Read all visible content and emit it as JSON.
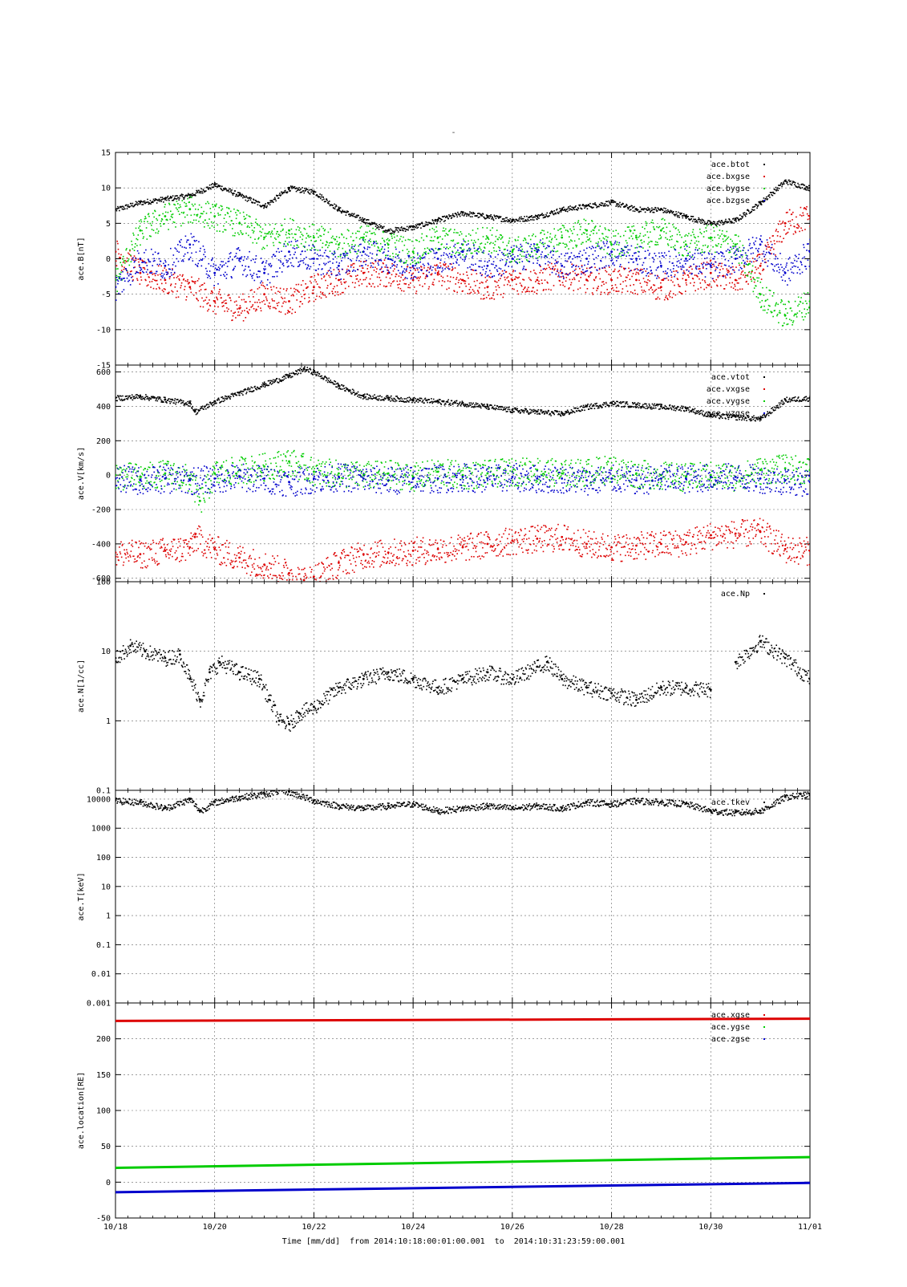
{
  "figure": {
    "title": "-",
    "x_axis_title": "Time [mm/dd]  from 2014:10:18:00:01:00.001  to  2014:10:31:23:59:00.001"
  },
  "chart_data": [
    {
      "type": "scatter",
      "ylabel": "ace.B[nT]",
      "yscale": "linear",
      "ylim": [
        -15,
        15
      ],
      "yticks": [
        -15,
        -10,
        -5,
        0,
        5,
        10,
        15
      ],
      "xlim": [
        0,
        14
      ],
      "xticks": [
        "10/18",
        "10/20",
        "10/22",
        "10/24",
        "10/26",
        "10/28",
        "10/30",
        "11/01"
      ],
      "grid": true,
      "legend": "top-right",
      "series": [
        {
          "name": "ace.btot",
          "color": "#000000",
          "x": [
            0,
            0.5,
            1,
            1.5,
            2,
            2.5,
            3,
            3.5,
            4,
            4.5,
            5,
            5.5,
            6,
            6.5,
            7,
            7.5,
            8,
            8.5,
            9,
            9.5,
            10,
            10.5,
            11,
            11.5,
            12,
            12.5,
            13,
            13.5,
            14
          ],
          "y": [
            7,
            8,
            8.5,
            9,
            10.5,
            9,
            7.5,
            10,
            9.5,
            7,
            5.5,
            4,
            4.5,
            5.5,
            6.5,
            6,
            5.5,
            6,
            7,
            7.5,
            8,
            7,
            7,
            6,
            5,
            5.5,
            8,
            11,
            10
          ]
        },
        {
          "name": "ace.bxgse",
          "color": "#dd0000",
          "x": [
            0,
            0.5,
            1,
            1.5,
            2,
            2.5,
            3,
            3.5,
            4,
            4.5,
            5,
            5.5,
            6,
            6.5,
            7,
            7.5,
            8,
            8.5,
            9,
            9.5,
            10,
            10.5,
            11,
            11.5,
            12,
            12.5,
            13,
            13.5,
            14
          ],
          "y": [
            1,
            -2,
            -3,
            -4,
            -6,
            -7,
            -5,
            -6,
            -4,
            -3,
            -2,
            -2,
            -3,
            -2,
            -3,
            -4,
            -3,
            -3,
            -2,
            -3,
            -3,
            -3,
            -4,
            -3,
            -2,
            -3,
            -1,
            5,
            6
          ]
        },
        {
          "name": "ace.bygse",
          "color": "#00cc00",
          "x": [
            0,
            0.5,
            1,
            1.5,
            2,
            2.5,
            3,
            3.5,
            4,
            4.5,
            5,
            5.5,
            6,
            6.5,
            7,
            7.5,
            8,
            8.5,
            9,
            9.5,
            10,
            10.5,
            11,
            11.5,
            12,
            12.5,
            13,
            13.5,
            14
          ],
          "y": [
            -3,
            4,
            6,
            7,
            6,
            5,
            3,
            4,
            3,
            2,
            3,
            2,
            1,
            3,
            2,
            3,
            1,
            2,
            3,
            4,
            2,
            3,
            4,
            2,
            3,
            2,
            -5,
            -8,
            -6
          ]
        },
        {
          "name": "ace.bzgse",
          "color": "#0000cc",
          "x": [
            0,
            0.5,
            1,
            1.5,
            2,
            2.5,
            3,
            3.5,
            4,
            4.5,
            5,
            5.5,
            6,
            6.5,
            7,
            7.5,
            8,
            8.5,
            9,
            9.5,
            10,
            10.5,
            11,
            11.5,
            12,
            12.5,
            13,
            13.5,
            14
          ],
          "y": [
            -4,
            0,
            -1,
            2,
            -2,
            0,
            -2,
            1,
            0,
            -1,
            1,
            0,
            -1,
            0,
            1,
            -1,
            0,
            1,
            -1,
            0,
            1,
            0,
            -1,
            0,
            -1,
            0,
            2,
            -2,
            1
          ]
        }
      ]
    },
    {
      "type": "scatter",
      "ylabel": "ace.V[km/s]",
      "yscale": "linear",
      "ylim": [
        -620,
        640
      ],
      "yticks": [
        -600,
        -400,
        -200,
        0,
        200,
        400,
        600
      ],
      "xlim": [
        0,
        14
      ],
      "xticks": [
        "10/18",
        "10/20",
        "10/22",
        "10/24",
        "10/26",
        "10/28",
        "10/30",
        "11/01"
      ],
      "grid": true,
      "legend": "top-right",
      "series": [
        {
          "name": "ace.vtot",
          "color": "#000000",
          "x": [
            0,
            0.5,
            1,
            1.5,
            1.6,
            2,
            2.5,
            3,
            3.5,
            3.8,
            4,
            4.5,
            5,
            5.5,
            6,
            6.5,
            7,
            7.5,
            8,
            8.5,
            9,
            9.5,
            10,
            10.5,
            11,
            11.5,
            12,
            12.5,
            13,
            13.5,
            14
          ],
          "y": [
            450,
            460,
            440,
            420,
            370,
            430,
            480,
            530,
            580,
            620,
            600,
            520,
            460,
            450,
            440,
            430,
            420,
            400,
            380,
            370,
            360,
            400,
            420,
            410,
            400,
            390,
            350,
            340,
            330,
            440,
            450
          ]
        },
        {
          "name": "ace.vxgse",
          "color": "#dd0000",
          "x": [
            0,
            0.5,
            1,
            1.5,
            1.6,
            2,
            2.5,
            3,
            3.5,
            3.8,
            4,
            4.5,
            5,
            5.5,
            6,
            6.5,
            7,
            7.5,
            8,
            8.5,
            9,
            9.5,
            10,
            10.5,
            11,
            11.5,
            12,
            12.5,
            13,
            13.5,
            14
          ],
          "y": [
            -450,
            -460,
            -440,
            -420,
            -360,
            -430,
            -480,
            -520,
            -570,
            -610,
            -590,
            -510,
            -460,
            -450,
            -440,
            -430,
            -420,
            -400,
            -380,
            -370,
            -360,
            -400,
            -420,
            -410,
            -400,
            -390,
            -350,
            -340,
            -330,
            -430,
            -440
          ]
        },
        {
          "name": "ace.vygse",
          "color": "#00cc00",
          "x": [
            0,
            0.5,
            1,
            1.5,
            1.7,
            2,
            2.5,
            3,
            3.5,
            4,
            4.5,
            5,
            5.5,
            6,
            6.5,
            7,
            7.5,
            8,
            8.5,
            9,
            9.5,
            10,
            10.5,
            11,
            11.5,
            12,
            12.5,
            13,
            13.5,
            14
          ],
          "y": [
            0,
            -10,
            10,
            -20,
            -150,
            10,
            30,
            50,
            80,
            20,
            10,
            0,
            10,
            -10,
            20,
            0,
            10,
            20,
            30,
            10,
            20,
            40,
            10,
            0,
            -10,
            0,
            -10,
            30,
            40,
            30
          ]
        },
        {
          "name": "ace.vzgse",
          "color": "#0000cc",
          "x": [
            0,
            0.5,
            1,
            1.5,
            2,
            2.5,
            3,
            3.5,
            4,
            4.5,
            5,
            5.5,
            6,
            6.5,
            7,
            7.5,
            8,
            8.5,
            9,
            9.5,
            10,
            10.5,
            11,
            11.5,
            12,
            12.5,
            13,
            13.5,
            14
          ],
          "y": [
            -20,
            -30,
            -20,
            -30,
            -20,
            -10,
            -20,
            -40,
            -20,
            -10,
            -20,
            -30,
            -20,
            -20,
            -10,
            -20,
            -10,
            -20,
            -20,
            -30,
            -20,
            -30,
            -20,
            -20,
            -10,
            -10,
            -20,
            -30,
            -40
          ]
        }
      ]
    },
    {
      "type": "scatter",
      "ylabel": "ace.N[1/cc]",
      "yscale": "log",
      "ylim": [
        0.1,
        100
      ],
      "yticks": [
        0.1,
        1,
        10,
        100
      ],
      "xlim": [
        0,
        14
      ],
      "xticks": [
        "10/18",
        "10/20",
        "10/22",
        "10/24",
        "10/26",
        "10/28",
        "10/30",
        "11/01"
      ],
      "grid": true,
      "legend": "top-right",
      "series": [
        {
          "name": "ace.Np",
          "color": "#000000",
          "x": [
            0,
            0.3,
            0.6,
            1,
            1.3,
            1.5,
            1.7,
            1.9,
            2.1,
            2.5,
            2.9,
            3.1,
            3.3,
            3.5,
            3.7,
            4,
            4.5,
            5,
            5.5,
            6,
            6.5,
            7,
            7.5,
            8,
            8.5,
            8.7,
            9,
            9.5,
            10,
            10.5,
            11,
            11.5,
            12,
            12.2,
            12.5,
            13,
            13.5,
            14
          ],
          "y": [
            8,
            12,
            10,
            8,
            9,
            4,
            2,
            5,
            7,
            5,
            4,
            2,
            1,
            0.9,
            1.3,
            1.6,
            3,
            4,
            5,
            4,
            3,
            4,
            5,
            4,
            6,
            7,
            4,
            3,
            2.5,
            2,
            3,
            3,
            2.8,
            null,
            7,
            14,
            8,
            4
          ]
        }
      ]
    },
    {
      "type": "scatter",
      "ylabel": "ace.T[keV]",
      "yscale": "log",
      "ylim": [
        0.001,
        20000
      ],
      "yticks": [
        0.001,
        0.01,
        0.1,
        1,
        10,
        100,
        1000,
        10000
      ],
      "xlim": [
        0,
        14
      ],
      "xticks": [
        "10/18",
        "10/20",
        "10/22",
        "10/24",
        "10/26",
        "10/28",
        "10/30",
        "11/01"
      ],
      "grid": true,
      "legend": "top-right",
      "series": [
        {
          "name": "ace.tkev",
          "color": "#000000",
          "x": [
            0,
            0.5,
            1,
            1.5,
            1.7,
            2,
            2.5,
            3,
            3.3,
            3.5,
            4,
            4.5,
            5,
            5.5,
            6,
            6.5,
            7,
            7.5,
            8,
            8.5,
            9,
            9.5,
            10,
            10.5,
            11,
            11.5,
            12,
            12.5,
            13,
            13.5,
            14
          ],
          "y": [
            9000,
            8000,
            5000,
            10000,
            4000,
            8000,
            12000,
            15000,
            20000,
            18000,
            9000,
            6000,
            5000,
            6000,
            7000,
            4000,
            5000,
            6000,
            5000,
            6000,
            5000,
            8000,
            7000,
            9000,
            8000,
            7000,
            4000,
            3500,
            4000,
            12000,
            15000
          ]
        }
      ]
    },
    {
      "type": "line",
      "ylabel": "ace.location[RE]",
      "yscale": "linear",
      "ylim": [
        -50,
        250
      ],
      "yticks": [
        -50,
        0,
        50,
        100,
        150,
        200
      ],
      "xlim": [
        0,
        14
      ],
      "xticks": [
        "10/18",
        "10/20",
        "10/22",
        "10/24",
        "10/26",
        "10/28",
        "10/30",
        "11/01"
      ],
      "grid": true,
      "legend": "top-right",
      "series": [
        {
          "name": "ace.xgse",
          "color": "#dd0000",
          "x": [
            0,
            14
          ],
          "y": [
            225,
            228
          ]
        },
        {
          "name": "ace.ygse",
          "color": "#00cc00",
          "x": [
            0,
            14
          ],
          "y": [
            20,
            35
          ]
        },
        {
          "name": "ace.zgse",
          "color": "#0000cc",
          "x": [
            0,
            14
          ],
          "y": [
            -14,
            -1
          ]
        }
      ]
    }
  ]
}
